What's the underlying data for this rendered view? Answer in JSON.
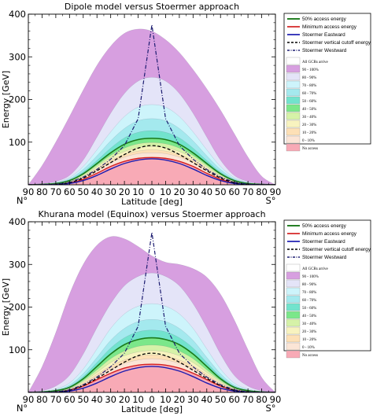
{
  "chart_data": [
    {
      "type": "area",
      "title": "Dipole model versus Stoermer approach",
      "xlabel": "Latitude [deg]",
      "ylabel": "Energy [GeV]",
      "xlim": [
        -90,
        90
      ],
      "ylim": [
        0,
        400
      ],
      "x_ticks": [
        -90,
        -80,
        -70,
        -60,
        -50,
        -40,
        -30,
        -20,
        -10,
        0,
        10,
        20,
        30,
        40,
        50,
        60,
        70,
        80,
        90
      ],
      "x_tick_labels": [
        "90",
        "80",
        "70",
        "60",
        "50",
        "40",
        "30",
        "20",
        "10",
        "0",
        "10",
        "20",
        "30",
        "40",
        "50",
        "60",
        "70",
        "80",
        "90"
      ],
      "y_ticks": [
        0,
        100,
        200,
        300,
        400
      ],
      "end_labels": [
        "N°",
        "S°"
      ],
      "grid": false,
      "legend_position": "right",
      "legend": {
        "lines": [
          {
            "name": "50% access energy",
            "color": "#1a7a1a",
            "style": "solid"
          },
          {
            "name": "Minimum access energy",
            "color": "#d42020",
            "style": "solid"
          },
          {
            "name": "Stoermer Eastward",
            "color": "#1c1cb0",
            "style": "solid"
          },
          {
            "name": "Stoermer vertical cutoff energy",
            "color": "#000000",
            "style": "dashed"
          },
          {
            "name": "Stoermer Westward",
            "color": "#1c1c70",
            "style": "dashdot"
          }
        ],
        "bands": [
          {
            "name": "All GCRs arrive",
            "color": "#ffffff"
          },
          {
            "name": "90 - 100%",
            "color": "#d79fe0"
          },
          {
            "name": "80 - 90%",
            "color": "#e4e4f8"
          },
          {
            "name": "70 - 80%",
            "color": "#cdf4fb"
          },
          {
            "name": "60 - 70%",
            "color": "#a4e9ee"
          },
          {
            "name": "50 - 60%",
            "color": "#72e3cd"
          },
          {
            "name": "40 - 50%",
            "color": "#7be78a"
          },
          {
            "name": "30 - 40%",
            "color": "#d6f2a8"
          },
          {
            "name": "20 - 30%",
            "color": "#f8f3bf"
          },
          {
            "name": "10 - 20%",
            "color": "#fde0b6"
          },
          {
            "name": "0 - 10%",
            "color": "#fbe5d6"
          },
          {
            "name": "No access",
            "color": "#f8aab6"
          }
        ]
      },
      "x": [
        -90,
        -80,
        -70,
        -60,
        -50,
        -40,
        -30,
        -20,
        -10,
        0,
        10,
        20,
        30,
        40,
        50,
        60,
        70,
        80,
        90
      ],
      "band_edges": [
        {
          "name": "No access",
          "values": [
            0,
            0,
            1,
            4,
            13,
            27,
            43,
            55,
            62,
            64,
            62,
            55,
            43,
            27,
            13,
            4,
            1,
            0,
            0
          ]
        },
        {
          "name": "0 - 10%",
          "values": [
            0,
            0,
            2,
            6,
            17,
            34,
            52,
            65,
            73,
            75,
            73,
            65,
            52,
            34,
            17,
            6,
            2,
            0,
            0
          ]
        },
        {
          "name": "10 - 20%",
          "values": [
            0,
            0,
            2,
            7,
            19,
            38,
            57,
            71,
            79,
            82,
            79,
            71,
            57,
            38,
            19,
            7,
            2,
            0,
            0
          ]
        },
        {
          "name": "20 - 30%",
          "values": [
            0,
            1,
            3,
            8,
            21,
            42,
            63,
            78,
            87,
            90,
            87,
            78,
            63,
            42,
            21,
            8,
            3,
            1,
            0
          ]
        },
        {
          "name": "30 - 40%",
          "values": [
            0,
            1,
            3,
            9,
            24,
            46,
            69,
            86,
            96,
            99,
            96,
            86,
            69,
            46,
            24,
            9,
            3,
            1,
            0
          ]
        },
        {
          "name": "40 - 50%",
          "values": [
            0,
            1,
            3,
            10,
            26,
            50,
            75,
            95,
            106,
            109,
            106,
            95,
            75,
            50,
            26,
            10,
            3,
            1,
            0
          ]
        },
        {
          "name": "50 - 60%",
          "values": [
            0,
            1,
            4,
            12,
            30,
            57,
            86,
            110,
            123,
            127,
            123,
            110,
            86,
            57,
            30,
            12,
            4,
            1,
            0
          ]
        },
        {
          "name": "60 - 70%",
          "values": [
            0,
            1,
            5,
            14,
            36,
            68,
            103,
            132,
            150,
            155,
            150,
            132,
            103,
            68,
            36,
            14,
            5,
            1,
            0
          ]
        },
        {
          "name": "70 - 80%",
          "values": [
            0,
            1,
            6,
            17,
            43,
            82,
            124,
            160,
            182,
            188,
            182,
            160,
            124,
            82,
            43,
            17,
            6,
            1,
            0
          ]
        },
        {
          "name": "80 - 90%",
          "values": [
            0,
            2,
            8,
            22,
            58,
            112,
            168,
            214,
            243,
            252,
            243,
            214,
            168,
            112,
            58,
            22,
            8,
            2,
            0
          ]
        },
        {
          "name": "90 - 100%",
          "values": [
            0,
            45,
            100,
            160,
            222,
            280,
            325,
            355,
            365,
            360,
            340,
            310,
            270,
            225,
            175,
            120,
            65,
            20,
            0
          ]
        }
      ],
      "series": [
        {
          "name": "50% access energy",
          "values": [
            0,
            1,
            3,
            10,
            26,
            50,
            75,
            95,
            106,
            109,
            106,
            95,
            75,
            50,
            26,
            10,
            3,
            1,
            0
          ]
        },
        {
          "name": "Minimum access energy",
          "values": [
            0,
            0,
            1,
            4,
            13,
            27,
            43,
            55,
            62,
            64,
            62,
            55,
            43,
            27,
            13,
            4,
            1,
            0,
            0
          ]
        },
        {
          "name": "Stoermer Eastward",
          "values": [
            0,
            0,
            1,
            3,
            10,
            22,
            37,
            50,
            58,
            61,
            58,
            50,
            37,
            22,
            10,
            3,
            1,
            0,
            0
          ]
        },
        {
          "name": "Stoermer vertical cutoff energy",
          "values": [
            0,
            0,
            1,
            5,
            16,
            33,
            52,
            71,
            86,
            92,
            86,
            71,
            52,
            33,
            16,
            5,
            1,
            0,
            0
          ]
        },
        {
          "name": "Stoermer Westward",
          "values": [
            0,
            0,
            1,
            6,
            18,
            36,
            60,
            92,
            155,
            375,
            155,
            92,
            60,
            36,
            18,
            6,
            1,
            0,
            0
          ]
        }
      ]
    },
    {
      "type": "area",
      "title": "Khurana model (Equinox) versus Stoermer approach",
      "xlabel": "Latitude [deg]",
      "ylabel": "Energy [GeV]",
      "xlim": [
        -90,
        90
      ],
      "ylim": [
        0,
        400
      ],
      "x_ticks": [
        -90,
        -80,
        -70,
        -60,
        -50,
        -40,
        -30,
        -20,
        -10,
        0,
        10,
        20,
        30,
        40,
        50,
        60,
        70,
        80,
        90
      ],
      "x_tick_labels": [
        "90",
        "80",
        "70",
        "60",
        "50",
        "40",
        "30",
        "20",
        "10",
        "0",
        "10",
        "20",
        "30",
        "40",
        "50",
        "60",
        "70",
        "80",
        "90"
      ],
      "y_ticks": [
        0,
        100,
        200,
        300,
        400
      ],
      "end_labels": [
        "N°",
        "S°"
      ],
      "grid": false,
      "legend_position": "right",
      "legend": {
        "lines": [
          {
            "name": "50% access energy",
            "color": "#1a7a1a",
            "style": "solid"
          },
          {
            "name": "Minimum access energy",
            "color": "#d42020",
            "style": "solid"
          },
          {
            "name": "Stoermer Eastward",
            "color": "#1c1cb0",
            "style": "solid"
          },
          {
            "name": "Stoermer vertical cutoff energy",
            "color": "#000000",
            "style": "dashed"
          },
          {
            "name": "Stoermer Westward",
            "color": "#1c1c70",
            "style": "dashdot"
          }
        ],
        "bands": [
          {
            "name": "All GCRs arrive",
            "color": "#ffffff"
          },
          {
            "name": "90 - 100%",
            "color": "#d79fe0"
          },
          {
            "name": "80 - 90%",
            "color": "#e4e4f8"
          },
          {
            "name": "70 - 80%",
            "color": "#cdf4fb"
          },
          {
            "name": "60 - 70%",
            "color": "#a4e9ee"
          },
          {
            "name": "50 - 60%",
            "color": "#72e3cd"
          },
          {
            "name": "40 - 50%",
            "color": "#7be78a"
          },
          {
            "name": "30 - 40%",
            "color": "#d6f2a8"
          },
          {
            "name": "20 - 30%",
            "color": "#f8f3bf"
          },
          {
            "name": "10 - 20%",
            "color": "#fde0b6"
          },
          {
            "name": "0 - 10%",
            "color": "#fbe5d6"
          },
          {
            "name": "No access",
            "color": "#f8aab6"
          }
        ]
      },
      "x": [
        -90,
        -80,
        -70,
        -60,
        -50,
        -40,
        -30,
        -20,
        -10,
        0,
        10,
        20,
        30,
        40,
        50,
        60,
        70,
        80,
        90
      ],
      "band_edges": [
        {
          "name": "No access",
          "values": [
            0,
            0,
            1,
            5,
            15,
            30,
            45,
            57,
            64,
            66,
            64,
            57,
            45,
            30,
            15,
            5,
            1,
            0,
            0
          ]
        },
        {
          "name": "0 - 10%",
          "values": [
            0,
            0,
            2,
            7,
            19,
            37,
            55,
            68,
            76,
            79,
            76,
            68,
            55,
            37,
            19,
            7,
            2,
            0,
            0
          ]
        },
        {
          "name": "10 - 20%",
          "values": [
            0,
            0,
            2,
            8,
            22,
            42,
            62,
            76,
            85,
            88,
            85,
            76,
            62,
            42,
            22,
            8,
            2,
            0,
            0
          ]
        },
        {
          "name": "20 - 30%",
          "values": [
            0,
            1,
            3,
            9,
            25,
            47,
            70,
            86,
            95,
            98,
            95,
            86,
            70,
            47,
            25,
            9,
            3,
            1,
            0
          ]
        },
        {
          "name": "30 - 40%",
          "values": [
            0,
            1,
            3,
            10,
            28,
            53,
            79,
            97,
            108,
            111,
            108,
            97,
            79,
            53,
            28,
            10,
            3,
            1,
            0
          ]
        },
        {
          "name": "40 - 50%",
          "values": [
            0,
            1,
            4,
            12,
            32,
            61,
            90,
            112,
            124,
            128,
            124,
            112,
            90,
            61,
            32,
            12,
            4,
            1,
            0
          ]
        },
        {
          "name": "50 - 60%",
          "values": [
            0,
            1,
            5,
            14,
            37,
            70,
            104,
            128,
            142,
            146,
            142,
            128,
            104,
            70,
            37,
            14,
            5,
            1,
            0
          ]
        },
        {
          "name": "60 - 70%",
          "values": [
            0,
            1,
            6,
            17,
            44,
            82,
            122,
            150,
            166,
            171,
            166,
            150,
            122,
            82,
            44,
            17,
            6,
            1,
            0
          ]
        },
        {
          "name": "70 - 80%",
          "values": [
            0,
            2,
            8,
            22,
            55,
            102,
            150,
            184,
            202,
            208,
            202,
            184,
            150,
            102,
            55,
            22,
            8,
            2,
            0
          ]
        },
        {
          "name": "80 - 90%",
          "values": [
            0,
            4,
            15,
            40,
            90,
            152,
            208,
            250,
            272,
            280,
            272,
            250,
            208,
            152,
            90,
            40,
            15,
            4,
            0
          ]
        },
        {
          "name": "90 - 100%",
          "values": [
            0,
            60,
            140,
            230,
            300,
            345,
            365,
            360,
            342,
            320,
            305,
            300,
            290,
            270,
            230,
            170,
            100,
            35,
            0
          ]
        }
      ],
      "series": [
        {
          "name": "50% access energy",
          "values": [
            0,
            1,
            4,
            12,
            32,
            61,
            90,
            112,
            124,
            128,
            124,
            112,
            90,
            61,
            32,
            12,
            4,
            1,
            0
          ]
        },
        {
          "name": "Minimum access energy",
          "values": [
            0,
            0,
            1,
            5,
            15,
            30,
            45,
            57,
            64,
            66,
            64,
            57,
            45,
            30,
            15,
            5,
            1,
            0,
            0
          ]
        },
        {
          "name": "Stoermer Eastward",
          "values": [
            0,
            0,
            1,
            3,
            10,
            22,
            37,
            50,
            58,
            61,
            58,
            50,
            37,
            22,
            10,
            3,
            1,
            0,
            0
          ]
        },
        {
          "name": "Stoermer vertical cutoff energy",
          "values": [
            0,
            0,
            1,
            5,
            16,
            33,
            52,
            71,
            86,
            92,
            86,
            71,
            52,
            33,
            16,
            5,
            1,
            0,
            0
          ]
        },
        {
          "name": "Stoermer Westward",
          "values": [
            0,
            0,
            1,
            6,
            18,
            36,
            60,
            92,
            155,
            375,
            155,
            92,
            60,
            36,
            18,
            6,
            1,
            0,
            0
          ]
        }
      ]
    }
  ]
}
